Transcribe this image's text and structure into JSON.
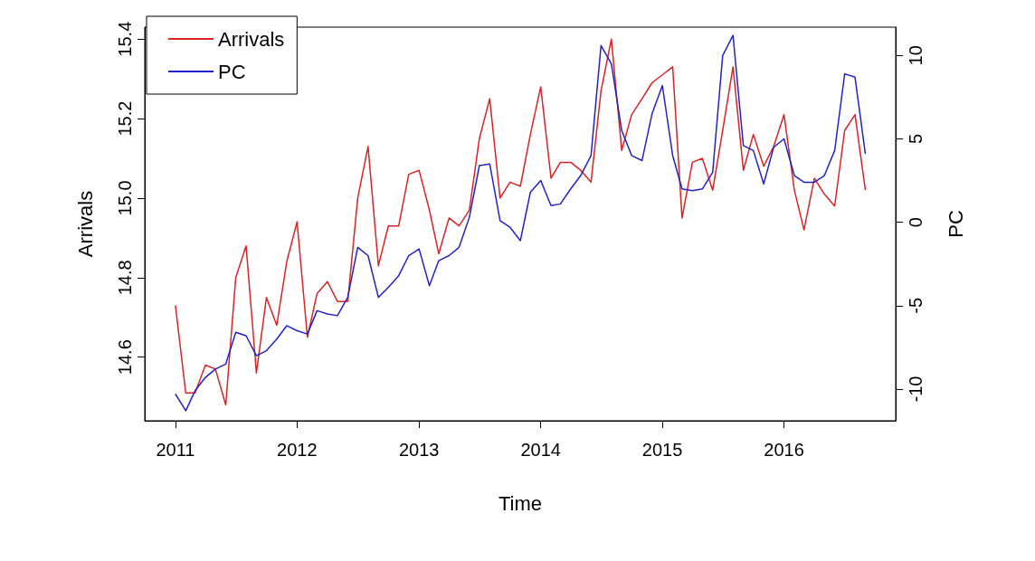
{
  "chart_data": {
    "type": "line",
    "xlabel": "Time",
    "ylabel": "Arrivals",
    "y2label": "PC",
    "legend": "top left",
    "grid": false,
    "x": [
      "2011-01",
      "2011-02",
      "2011-03",
      "2011-04",
      "2011-05",
      "2011-06",
      "2011-07",
      "2011-08",
      "2011-09",
      "2011-10",
      "2011-11",
      "2011-12",
      "2012-01",
      "2012-02",
      "2012-03",
      "2012-04",
      "2012-05",
      "2012-06",
      "2012-07",
      "2012-08",
      "2012-09",
      "2012-10",
      "2012-11",
      "2012-12",
      "2013-01",
      "2013-02",
      "2013-03",
      "2013-04",
      "2013-05",
      "2013-06",
      "2013-07",
      "2013-08",
      "2013-09",
      "2013-10",
      "2013-11",
      "2013-12",
      "2014-01",
      "2014-02",
      "2014-03",
      "2014-04",
      "2014-05",
      "2014-06",
      "2014-07",
      "2014-08",
      "2014-09",
      "2014-10",
      "2014-11",
      "2014-12",
      "2015-01",
      "2015-02",
      "2015-03",
      "2015-04",
      "2015-05",
      "2015-06",
      "2015-07",
      "2015-08",
      "2015-09",
      "2015-10",
      "2015-11",
      "2015-12",
      "2016-01",
      "2016-02",
      "2016-03",
      "2016-04",
      "2016-05",
      "2016-06",
      "2016-07",
      "2016-08",
      "2016-09"
    ],
    "xlim": [
      "2010-10",
      "2016-12"
    ],
    "xticks": [
      {
        "value": "2011",
        "label": "2011"
      },
      {
        "value": "2012",
        "label": "2012"
      },
      {
        "value": "2013",
        "label": "2013"
      },
      {
        "value": "2014",
        "label": "2014"
      },
      {
        "value": "2015",
        "label": "2015"
      },
      {
        "value": "2016",
        "label": "2016"
      }
    ],
    "ylim": [
      14.44,
      15.43
    ],
    "yticks": [
      14.6,
      14.8,
      {
        "value": 15,
        "label": "15.0"
      },
      15.2,
      15.4
    ],
    "y2lim": [
      -11.9,
      11.7
    ],
    "y2ticks": [
      -10,
      -5,
      0,
      5,
      10
    ],
    "series": [
      {
        "name": "Arrivals",
        "color": "#dd2222",
        "values": [
          14.73,
          14.51,
          14.51,
          14.58,
          14.57,
          14.48,
          14.8,
          14.88,
          14.56,
          14.75,
          14.68,
          14.84,
          14.94,
          14.65,
          14.76,
          14.79,
          14.74,
          14.74,
          15.0,
          15.13,
          14.83,
          14.93,
          14.93,
          15.06,
          15.07,
          14.97,
          14.86,
          14.95,
          14.93,
          14.97,
          15.15,
          15.25,
          15.0,
          15.04,
          15.03,
          15.16,
          15.28,
          15.05,
          15.09,
          15.09,
          15.07,
          15.04,
          15.27,
          15.4,
          15.12,
          15.21,
          15.25,
          15.29,
          15.31,
          15.33,
          14.95,
          15.09,
          15.1,
          15.02,
          15.17,
          15.33,
          15.07,
          15.16,
          15.08,
          15.13,
          15.21,
          15.02,
          14.92,
          15.05,
          15.01,
          14.98,
          15.17,
          15.21,
          15.02
        ]
      },
      {
        "name": "PC",
        "color": "#2222cc",
        "axis": "y2",
        "values": [
          -10.3,
          -11.3,
          -10.1,
          -9.3,
          -8.8,
          -8.5,
          -6.6,
          -6.8,
          -8.0,
          -7.7,
          -7.0,
          -6.2,
          -6.5,
          -6.7,
          -5.3,
          -5.5,
          -5.6,
          -4.5,
          -1.5,
          -2.0,
          -4.5,
          -3.9,
          -3.2,
          -2.0,
          -1.6,
          -3.8,
          -2.3,
          -2.0,
          -1.5,
          0.3,
          3.4,
          3.5,
          0.1,
          -0.3,
          -1.1,
          1.8,
          2.5,
          1.0,
          1.1,
          2.0,
          2.8,
          4.0,
          10.6,
          9.5,
          5.5,
          4.0,
          3.7,
          6.5,
          8.2,
          4.0,
          2.0,
          1.9,
          2.0,
          3.0,
          10.0,
          11.2,
          4.6,
          4.3,
          2.3,
          4.5,
          5.0,
          2.8,
          2.4,
          2.4,
          2.8,
          4.3,
          8.9,
          8.7,
          4.1
        ]
      }
    ]
  }
}
